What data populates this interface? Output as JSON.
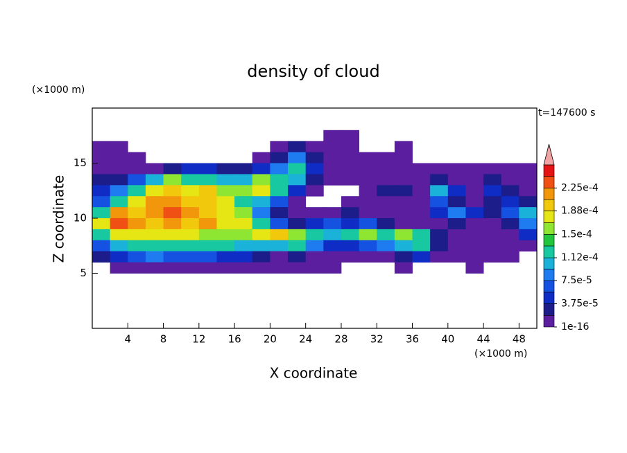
{
  "chart_data": {
    "type": "contour",
    "title": "density of cloud",
    "y_unit": "(×1000 m)",
    "x_unit": "(×1000 m)",
    "time_label": "t=147600 s",
    "xlabel": "X coordinate",
    "ylabel": "Z coordinate",
    "xlim": [
      0,
      50
    ],
    "ylim": [
      0,
      20
    ],
    "xticks": [
      4,
      8,
      12,
      16,
      20,
      24,
      28,
      32,
      36,
      40,
      44,
      48
    ],
    "yticks": [
      5,
      10,
      15
    ],
    "x": [
      1,
      3,
      5,
      7,
      9,
      11,
      13,
      15,
      17,
      19,
      21,
      23,
      25,
      27,
      29,
      31,
      33,
      35,
      37,
      39,
      41,
      43,
      45,
      47,
      49
    ],
    "y": [
      17.5,
      16.5,
      15.5,
      14.5,
      13.5,
      12.5,
      11.5,
      10.5,
      9.5,
      8.5,
      7.5,
      6.5,
      5.5
    ],
    "z": [
      [
        0,
        0,
        0,
        0,
        0,
        0,
        0,
        0,
        0,
        0,
        0,
        0,
        0,
        1e-05,
        1e-05,
        0,
        0,
        0,
        0,
        0,
        0,
        0,
        0,
        0,
        0
      ],
      [
        1e-05,
        1e-05,
        0,
        0,
        0,
        0,
        0,
        0,
        0,
        0,
        1e-05,
        3e-05,
        1e-05,
        1e-05,
        1e-05,
        0,
        0,
        1e-05,
        0,
        0,
        0,
        0,
        0,
        0,
        0
      ],
      [
        1e-05,
        1e-05,
        1e-05,
        0,
        0,
        0,
        0,
        0,
        0,
        1e-05,
        3e-05,
        9e-05,
        3e-05,
        1e-05,
        1e-05,
        1e-05,
        1e-05,
        1e-05,
        0,
        0,
        0,
        0,
        0,
        0,
        0
      ],
      [
        1e-05,
        1e-05,
        1e-05,
        1e-05,
        3e-05,
        5e-05,
        5e-05,
        3e-05,
        3e-05,
        5e-05,
        9e-05,
        0.00013,
        5e-05,
        1e-05,
        1e-05,
        1e-05,
        1e-05,
        1e-05,
        1e-05,
        1e-05,
        1e-05,
        1e-05,
        1e-05,
        1e-05,
        1e-05
      ],
      [
        3e-05,
        3e-05,
        7e-05,
        0.00011,
        0.00015,
        0.00013,
        0.00013,
        0.00011,
        0.00011,
        0.00015,
        0.00013,
        0.00011,
        3e-05,
        1e-05,
        1e-05,
        1e-05,
        1e-05,
        1e-05,
        1e-05,
        3e-05,
        1e-05,
        1e-05,
        3e-05,
        1e-05,
        1e-05
      ],
      [
        5e-05,
        9e-05,
        0.00013,
        0.00017,
        0.00019,
        0.00017,
        0.00019,
        0.00015,
        0.00015,
        0.00017,
        0.00013,
        5e-05,
        1e-05,
        0,
        0,
        1e-05,
        3e-05,
        3e-05,
        1e-05,
        0.00011,
        5e-05,
        1e-05,
        5e-05,
        3e-05,
        1e-05
      ],
      [
        7e-05,
        0.00013,
        0.00017,
        0.00021,
        0.00021,
        0.00019,
        0.00019,
        0.00017,
        0.00013,
        0.00011,
        7e-05,
        1e-05,
        0,
        0,
        1e-05,
        1e-05,
        1e-05,
        1e-05,
        1e-05,
        7e-05,
        3e-05,
        1e-05,
        3e-05,
        5e-05,
        3e-05
      ],
      [
        0.00013,
        0.00021,
        0.00019,
        0.00021,
        0.00023,
        0.00021,
        0.00019,
        0.00017,
        0.00015,
        9e-05,
        3e-05,
        1e-05,
        1e-05,
        1e-05,
        3e-05,
        1e-05,
        1e-05,
        1e-05,
        1e-05,
        5e-05,
        9e-05,
        5e-05,
        3e-05,
        7e-05,
        0.00011
      ],
      [
        0.00017,
        0.00023,
        0.00021,
        0.00019,
        0.00021,
        0.00019,
        0.00021,
        0.00017,
        0.00017,
        0.00013,
        7e-05,
        3e-05,
        5e-05,
        7e-05,
        5e-05,
        7e-05,
        3e-05,
        1e-05,
        1e-05,
        1e-05,
        3e-05,
        1e-05,
        1e-05,
        3e-05,
        9e-05
      ],
      [
        0.00013,
        0.00017,
        0.00017,
        0.00017,
        0.00017,
        0.00017,
        0.00015,
        0.00015,
        0.00015,
        0.00017,
        0.00019,
        0.00015,
        0.00013,
        0.00011,
        0.00013,
        0.00015,
        0.00013,
        0.00015,
        0.00013,
        3e-05,
        1e-05,
        1e-05,
        1e-05,
        1e-05,
        5e-05
      ],
      [
        7e-05,
        0.00011,
        0.00013,
        0.00013,
        0.00013,
        0.00013,
        0.00013,
        0.00013,
        0.00011,
        0.00011,
        0.00011,
        0.00013,
        9e-05,
        5e-05,
        5e-05,
        7e-05,
        9e-05,
        0.00011,
        0.00013,
        3e-05,
        1e-05,
        1e-05,
        1e-05,
        1e-05,
        1e-05
      ],
      [
        3e-05,
        5e-05,
        7e-05,
        9e-05,
        7e-05,
        7e-05,
        7e-05,
        5e-05,
        5e-05,
        3e-05,
        1e-05,
        3e-05,
        1e-05,
        1e-05,
        1e-05,
        1e-05,
        1e-05,
        3e-05,
        5e-05,
        1e-05,
        1e-05,
        1e-05,
        1e-05,
        1e-05,
        0
      ],
      [
        0,
        1e-05,
        1e-05,
        1e-05,
        1e-05,
        1e-05,
        1e-05,
        1e-05,
        1e-05,
        1e-05,
        1e-05,
        1e-05,
        1e-05,
        1e-05,
        0,
        0,
        0,
        1e-05,
        0,
        0,
        0,
        1e-05,
        0,
        0,
        0
      ]
    ],
    "colorbar": {
      "levels": [
        1e-16,
        1.875e-05,
        3.75e-05,
        5.625e-05,
        7.5e-05,
        9.375e-05,
        0.000112,
        0.00013125,
        0.00015,
        0.00016875,
        0.000188,
        0.00020625,
        0.000225,
        0.00024375,
        0.0002625
      ],
      "colors": [
        "#5b1e9e",
        "#1c1c8a",
        "#0f2cc4",
        "#1652e2",
        "#1f7cf0",
        "#1ab2d8",
        "#18c8a0",
        "#22c63c",
        "#8ee632",
        "#e6e614",
        "#f2c80c",
        "#f2960c",
        "#f05014",
        "#e41414"
      ],
      "over_color": "#f2a4a4",
      "ticks": [
        1e-16,
        {
          "value": 3.75e-05,
          "label": "3.75e-5"
        },
        {
          "value": 7.5e-05,
          "label": "7.5e-5"
        },
        {
          "value": 0.000112,
          "label": "1.12e-4"
        },
        {
          "value": 0.00015,
          "label": "1.5e-4"
        },
        {
          "value": 0.000188,
          "label": "1.88e-4"
        },
        {
          "value": 0.000225,
          "label": "2.25e-4"
        }
      ]
    }
  }
}
